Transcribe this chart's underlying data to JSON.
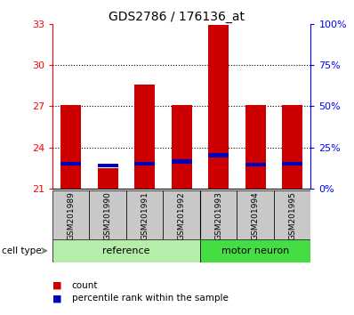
{
  "title": "GDS2786 / 176136_at",
  "samples": [
    "GSM201989",
    "GSM201990",
    "GSM201991",
    "GSM201992",
    "GSM201993",
    "GSM201994",
    "GSM201995"
  ],
  "count_values": [
    27.1,
    22.5,
    28.6,
    27.1,
    32.9,
    27.1,
    27.1
  ],
  "percentile_values": [
    22.85,
    22.7,
    22.85,
    23.0,
    23.45,
    22.75,
    22.85
  ],
  "baseline": 21,
  "ylim_left": [
    21,
    33
  ],
  "ylim_right": [
    0,
    100
  ],
  "yticks_left": [
    21,
    24,
    27,
    30,
    33
  ],
  "yticks_right": [
    0,
    25,
    50,
    75,
    100
  ],
  "ytick_labels_right": [
    "0%",
    "25%",
    "50%",
    "75%",
    "100%"
  ],
  "groups": [
    {
      "label": "reference",
      "start": 0,
      "end": 3,
      "color": "#b5eeaa"
    },
    {
      "label": "motor neuron",
      "start": 4,
      "end": 6,
      "color": "#44dd44"
    }
  ],
  "bar_color_red": "#cc0000",
  "bar_color_blue": "#0000bb",
  "bar_width": 0.55,
  "grid_color": "#000000",
  "bg_label": "#c8c8c8",
  "cell_type_label": "cell type",
  "legend_count": "count",
  "legend_percentile": "percentile rank within the sample",
  "title_fontsize": 10,
  "tick_fontsize": 8,
  "label_fontsize": 6.5,
  "group_fontsize": 8
}
